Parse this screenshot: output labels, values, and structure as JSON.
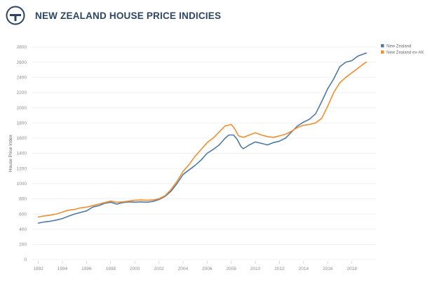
{
  "header": {
    "title": "NEW ZEALAND HOUSE PRICE INDICIES",
    "logo_icon": "weighing-scale-logo-icon"
  },
  "chart_data": {
    "type": "line",
    "title": "NEW ZEALAND HOUSE PRICE INDICIES",
    "xlabel": "",
    "ylabel": "House Price Index",
    "xlim": [
      1991.5,
      2020.0
    ],
    "ylim": [
      0,
      2800
    ],
    "x_ticks": [
      "1992",
      "1994",
      "1996",
      "1998",
      "2000",
      "2002",
      "2004",
      "2006",
      "2008",
      "2010",
      "2012",
      "2014",
      "2016",
      "2018"
    ],
    "y_ticks": [
      "0",
      "200",
      "400",
      "600",
      "800",
      "1000",
      "1200",
      "1400",
      "1600",
      "1800",
      "2000",
      "2200",
      "2400",
      "2600",
      "2800"
    ],
    "grid": true,
    "legend": "top-right",
    "series": [
      {
        "name": "New Zealand",
        "color": "#4e79a7",
        "points": [
          [
            1992.0,
            480
          ],
          [
            1992.5,
            495
          ],
          [
            1993.0,
            505
          ],
          [
            1993.5,
            520
          ],
          [
            1994.0,
            540
          ],
          [
            1994.5,
            570
          ],
          [
            1995.0,
            600
          ],
          [
            1995.5,
            620
          ],
          [
            1996.0,
            640
          ],
          [
            1996.5,
            690
          ],
          [
            1997.0,
            710
          ],
          [
            1997.5,
            740
          ],
          [
            1998.0,
            755
          ],
          [
            1998.5,
            730
          ],
          [
            1999.0,
            750
          ],
          [
            1999.5,
            760
          ],
          [
            2000.0,
            755
          ],
          [
            2000.5,
            760
          ],
          [
            2001.0,
            755
          ],
          [
            2001.5,
            765
          ],
          [
            2002.0,
            790
          ],
          [
            2002.5,
            830
          ],
          [
            2003.0,
            900
          ],
          [
            2003.5,
            1000
          ],
          [
            2004.0,
            1120
          ],
          [
            2004.5,
            1180
          ],
          [
            2005.0,
            1240
          ],
          [
            2005.5,
            1310
          ],
          [
            2006.0,
            1400
          ],
          [
            2006.5,
            1450
          ],
          [
            2007.0,
            1510
          ],
          [
            2007.5,
            1600
          ],
          [
            2007.8,
            1640
          ],
          [
            2008.2,
            1640
          ],
          [
            2008.5,
            1580
          ],
          [
            2008.8,
            1490
          ],
          [
            2009.0,
            1460
          ],
          [
            2009.5,
            1510
          ],
          [
            2010.0,
            1550
          ],
          [
            2010.5,
            1530
          ],
          [
            2011.0,
            1510
          ],
          [
            2011.5,
            1540
          ],
          [
            2012.0,
            1560
          ],
          [
            2012.5,
            1600
          ],
          [
            2013.0,
            1680
          ],
          [
            2013.5,
            1760
          ],
          [
            2014.0,
            1810
          ],
          [
            2014.5,
            1850
          ],
          [
            2015.0,
            1920
          ],
          [
            2015.5,
            2080
          ],
          [
            2016.0,
            2250
          ],
          [
            2016.5,
            2380
          ],
          [
            2017.0,
            2540
          ],
          [
            2017.5,
            2600
          ],
          [
            2018.0,
            2620
          ],
          [
            2018.5,
            2680
          ],
          [
            2019.0,
            2710
          ],
          [
            2019.2,
            2720
          ]
        ]
      },
      {
        "name": "New Zealand ex-AK",
        "color": "#f28e2b",
        "points": [
          [
            1992.0,
            560
          ],
          [
            1992.5,
            575
          ],
          [
            1993.0,
            585
          ],
          [
            1993.5,
            600
          ],
          [
            1994.0,
            625
          ],
          [
            1994.5,
            650
          ],
          [
            1995.0,
            660
          ],
          [
            1995.5,
            680
          ],
          [
            1996.0,
            690
          ],
          [
            1996.5,
            710
          ],
          [
            1997.0,
            730
          ],
          [
            1997.5,
            750
          ],
          [
            1998.0,
            770
          ],
          [
            1998.5,
            755
          ],
          [
            1999.0,
            760
          ],
          [
            1999.5,
            770
          ],
          [
            2000.0,
            780
          ],
          [
            2000.5,
            785
          ],
          [
            2001.0,
            780
          ],
          [
            2001.5,
            785
          ],
          [
            2002.0,
            800
          ],
          [
            2002.5,
            840
          ],
          [
            2003.0,
            920
          ],
          [
            2003.5,
            1030
          ],
          [
            2004.0,
            1160
          ],
          [
            2004.5,
            1250
          ],
          [
            2005.0,
            1360
          ],
          [
            2005.5,
            1450
          ],
          [
            2006.0,
            1540
          ],
          [
            2006.5,
            1600
          ],
          [
            2007.0,
            1680
          ],
          [
            2007.5,
            1760
          ],
          [
            2008.0,
            1780
          ],
          [
            2008.3,
            1720
          ],
          [
            2008.6,
            1630
          ],
          [
            2009.0,
            1610
          ],
          [
            2009.5,
            1640
          ],
          [
            2010.0,
            1670
          ],
          [
            2010.5,
            1640
          ],
          [
            2011.0,
            1620
          ],
          [
            2011.5,
            1610
          ],
          [
            2012.0,
            1630
          ],
          [
            2012.5,
            1650
          ],
          [
            2013.0,
            1690
          ],
          [
            2013.5,
            1740
          ],
          [
            2014.0,
            1770
          ],
          [
            2014.5,
            1780
          ],
          [
            2015.0,
            1800
          ],
          [
            2015.5,
            1860
          ],
          [
            2016.0,
            2020
          ],
          [
            2016.5,
            2200
          ],
          [
            2017.0,
            2330
          ],
          [
            2017.5,
            2400
          ],
          [
            2018.0,
            2460
          ],
          [
            2018.5,
            2520
          ],
          [
            2019.0,
            2580
          ],
          [
            2019.2,
            2600
          ]
        ]
      }
    ]
  }
}
